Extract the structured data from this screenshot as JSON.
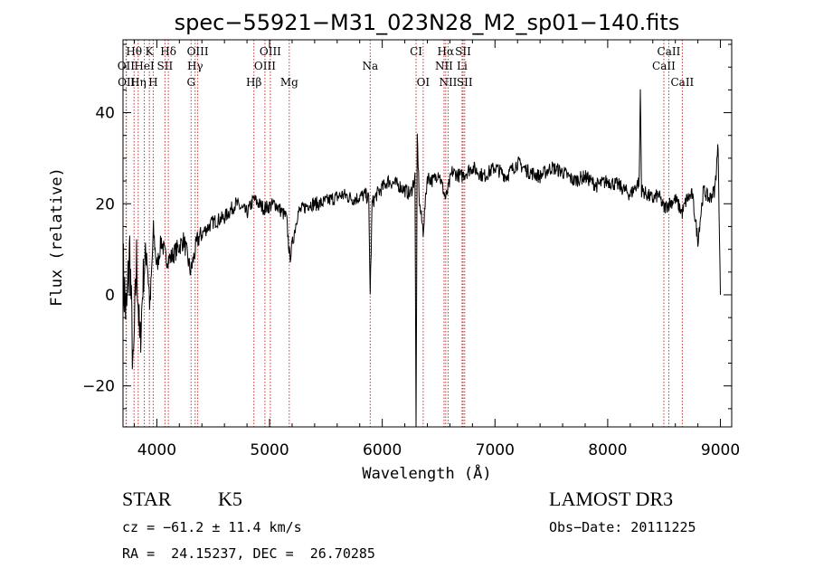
{
  "chart_data": {
    "type": "line",
    "title": "spec−55921−M31_023N28_M2_sp01−140.fits",
    "xlabel": "Wavelength (Å)",
    "ylabel": "Flux (relative)",
    "xlim": [
      3700,
      9100
    ],
    "ylim": [
      -29,
      56
    ],
    "xticks": [
      4000,
      5000,
      6000,
      7000,
      8000,
      9000
    ],
    "yticks": [
      -20,
      0,
      20,
      40
    ],
    "series": [
      {
        "name": "flux",
        "x": [
          3700,
          3730,
          3760,
          3790,
          3820,
          3850,
          3880,
          3910,
          3940,
          3970,
          4000,
          4040,
          4080,
          4120,
          4180,
          4240,
          4300,
          4360,
          4420,
          4500,
          4600,
          4700,
          4800,
          4860,
          4950,
          5050,
          5150,
          5180,
          5250,
          5350,
          5450,
          5550,
          5650,
          5750,
          5850,
          5880,
          5893,
          5910,
          5950,
          6050,
          6150,
          6250,
          6290,
          6300,
          6310,
          6330,
          6363,
          6400,
          6450,
          6500,
          6563,
          6620,
          6700,
          6800,
          6900,
          7000,
          7100,
          7200,
          7300,
          7400,
          7500,
          7600,
          7700,
          7800,
          7900,
          8000,
          8100,
          8200,
          8280,
          8290,
          8300,
          8350,
          8400,
          8450,
          8500,
          8542,
          8600,
          8662,
          8700,
          8750,
          8800,
          8850,
          8900,
          8950,
          8980,
          9000
        ],
        "y": [
          5,
          -5,
          10,
          -18,
          8,
          -12,
          4,
          10,
          -3,
          14,
          6,
          12,
          8,
          8,
          10,
          12,
          5,
          12,
          14,
          16,
          17,
          20,
          18,
          21,
          19,
          20,
          17,
          8,
          18,
          20,
          20,
          21,
          22,
          21,
          22,
          21,
          0,
          20,
          22,
          25,
          24,
          22,
          26,
          -29,
          35,
          20,
          14,
          26,
          25,
          27,
          21,
          27,
          26,
          28,
          26,
          28,
          26,
          29,
          27,
          26,
          28,
          27,
          25,
          26,
          24,
          25,
          24,
          22,
          25,
          45,
          23,
          22,
          21,
          22,
          19,
          20,
          21,
          18,
          21,
          22,
          12,
          23,
          21,
          23,
          33,
          0
        ],
        "noise_amplitude": 1.6
      }
    ],
    "line_markers": [
      {
        "label": "Hθ",
        "wavelength": 3798,
        "row": 1
      },
      {
        "label": "K",
        "wavelength": 3934,
        "row": 1
      },
      {
        "label": "Hδ",
        "wavelength": 4102,
        "row": 1
      },
      {
        "label": "OIII",
        "wavelength": 4363,
        "row": 1
      },
      {
        "label": "OIII",
        "wavelength": 5007,
        "row": 1
      },
      {
        "label": "CI",
        "wavelength": 6300,
        "row": 1
      },
      {
        "label": "Hα",
        "wavelength": 6563,
        "row": 1
      },
      {
        "label": "SII",
        "wavelength": 6717,
        "row": 1
      },
      {
        "label": "CaII",
        "wavelength": 8542,
        "row": 1
      },
      {
        "label": "OII",
        "wavelength": 3727,
        "row": 2
      },
      {
        "label": "HeI",
        "wavelength": 3889,
        "row": 2
      },
      {
        "label": "SII",
        "wavelength": 4072,
        "row": 2
      },
      {
        "label": "Hγ",
        "wavelength": 4340,
        "row": 2
      },
      {
        "label": "OIII",
        "wavelength": 4959,
        "row": 2
      },
      {
        "label": "Na",
        "wavelength": 5893,
        "row": 2
      },
      {
        "label": "NII",
        "wavelength": 6548,
        "row": 2
      },
      {
        "label": "Li",
        "wavelength": 6708,
        "row": 2
      },
      {
        "label": "CaII",
        "wavelength": 8498,
        "row": 2
      },
      {
        "label": "OII",
        "wavelength": 3730,
        "row": 3
      },
      {
        "label": "Hη",
        "wavelength": 3835,
        "row": 3
      },
      {
        "label": "H",
        "wavelength": 3968,
        "row": 3
      },
      {
        "label": "G",
        "wavelength": 4304,
        "row": 3
      },
      {
        "label": "Hβ",
        "wavelength": 4861,
        "row": 3
      },
      {
        "label": "Mg",
        "wavelength": 5175,
        "row": 3
      },
      {
        "label": "OI",
        "wavelength": 6363,
        "row": 3
      },
      {
        "label": "NII",
        "wavelength": 6584,
        "row": 3
      },
      {
        "label": "SII",
        "wavelength": 6731,
        "row": 3
      },
      {
        "label": "CaII",
        "wavelength": 8662,
        "row": 3
      }
    ],
    "marker_color": "#c83232"
  },
  "info": {
    "object_class": "STAR",
    "subclass": "K5",
    "survey": "LAMOST DR3",
    "redshift": "cz = −61.2 ± 11.4 km/s",
    "obs_date": "Obs−Date: 20111225",
    "coords": "RA =  24.15237, DEC =  26.70285"
  }
}
